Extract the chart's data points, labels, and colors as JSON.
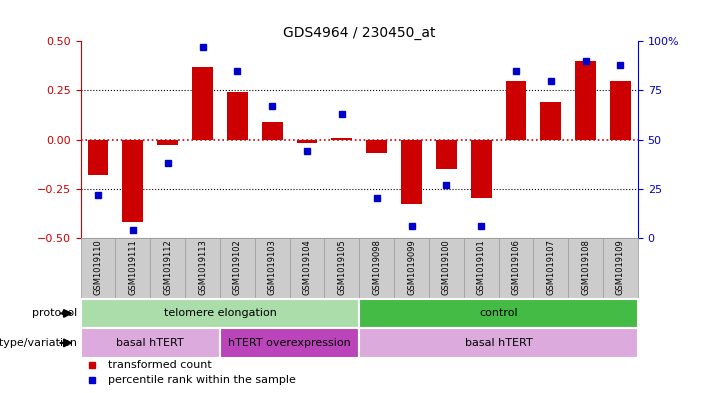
{
  "title": "GDS4964 / 230450_at",
  "samples": [
    "GSM1019110",
    "GSM1019111",
    "GSM1019112",
    "GSM1019113",
    "GSM1019102",
    "GSM1019103",
    "GSM1019104",
    "GSM1019105",
    "GSM1019098",
    "GSM1019099",
    "GSM1019100",
    "GSM1019101",
    "GSM1019106",
    "GSM1019107",
    "GSM1019108",
    "GSM1019109"
  ],
  "bar_values": [
    -0.18,
    -0.42,
    -0.03,
    0.37,
    0.24,
    0.09,
    -0.02,
    0.01,
    -0.07,
    -0.33,
    -0.15,
    -0.3,
    0.3,
    0.19,
    0.4,
    0.3
  ],
  "dot_values": [
    -0.28,
    -0.46,
    -0.12,
    0.47,
    0.35,
    0.17,
    -0.06,
    0.13,
    -0.3,
    -0.44,
    -0.23,
    -0.44,
    0.35,
    0.3,
    0.4,
    0.38
  ],
  "ylim": [
    -0.5,
    0.5
  ],
  "yticks_left": [
    -0.5,
    -0.25,
    0.0,
    0.25,
    0.5
  ],
  "yticks_right": [
    0,
    25,
    50,
    75,
    100
  ],
  "bar_color": "#cc0000",
  "dot_color": "#0000cc",
  "hline_color": "#cc0000",
  "dotted_color": "#000000",
  "protocol_groups": [
    {
      "label": "telomere elongation",
      "start": 0,
      "end": 8,
      "color": "#aaddaa"
    },
    {
      "label": "control",
      "start": 8,
      "end": 16,
      "color": "#44bb44"
    }
  ],
  "genotype_groups": [
    {
      "label": "basal hTERT",
      "start": 0,
      "end": 4,
      "color": "#ddaadd"
    },
    {
      "label": "hTERT overexpression",
      "start": 4,
      "end": 8,
      "color": "#bb44bb"
    },
    {
      "label": "basal hTERT",
      "start": 8,
      "end": 16,
      "color": "#ddaadd"
    }
  ],
  "legend_items": [
    {
      "label": "transformed count",
      "color": "#cc0000"
    },
    {
      "label": "percentile rank within the sample",
      "color": "#0000cc"
    }
  ],
  "bg_color": "#ffffff",
  "tick_color_left": "#cc0000",
  "tick_color_right": "#0000cc",
  "sample_bg": "#cccccc",
  "sample_border": "#999999"
}
